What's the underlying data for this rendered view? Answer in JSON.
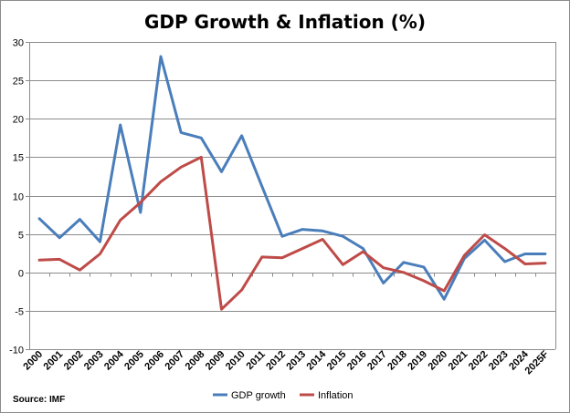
{
  "chart_data": {
    "type": "line",
    "title": "GDP Growth & Inflation (%)",
    "xlabel": "",
    "ylabel": "",
    "ylim": [
      -10,
      30
    ],
    "yticks": [
      -10,
      -5,
      0,
      5,
      10,
      15,
      20,
      25,
      30
    ],
    "grid": true,
    "legend": "bottom-center",
    "categories": [
      "2000",
      "2001",
      "2002",
      "2003",
      "2004",
      "2005",
      "2006",
      "2007",
      "2008",
      "2009",
      "2010",
      "2011",
      "2012",
      "2013",
      "2014",
      "2015",
      "2016",
      "2017",
      "2018",
      "2019",
      "2020",
      "2021",
      "2022",
      "2023",
      "2024",
      "2025F"
    ],
    "series": [
      {
        "name": "GDP growth",
        "color": "#4a7ebb",
        "values": [
          7.0,
          4.5,
          6.9,
          4.0,
          19.2,
          7.8,
          28.1,
          18.2,
          17.5,
          13.1,
          17.8,
          11.2,
          4.7,
          5.6,
          5.4,
          4.7,
          3.1,
          -1.4,
          1.3,
          0.7,
          -3.5,
          1.8,
          4.2,
          1.4,
          2.4,
          2.4
        ]
      },
      {
        "name": "Inflation",
        "color": "#be4b48",
        "values": [
          1.6,
          1.7,
          0.3,
          2.4,
          6.8,
          9.1,
          11.8,
          13.7,
          15.0,
          -4.8,
          -2.3,
          2.0,
          1.9,
          3.1,
          4.3,
          1.0,
          2.7,
          0.6,
          0.0,
          -1.1,
          -2.4,
          2.2,
          4.9,
          3.1,
          1.1,
          1.2
        ]
      }
    ],
    "source": "Source: IMF"
  }
}
